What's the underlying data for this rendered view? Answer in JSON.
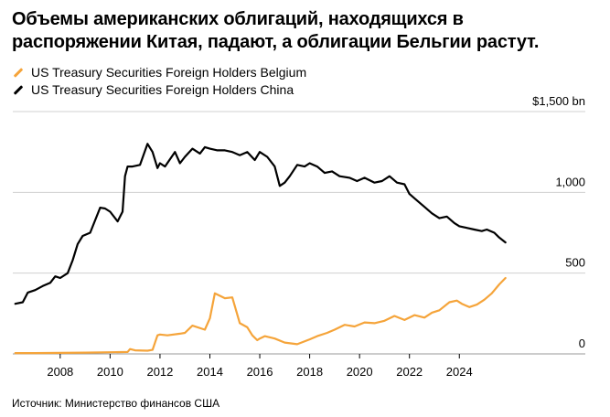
{
  "title": "Объемы американских облигаций, находящихся в распоряжении Китая, падают, а облигации Бельгии растут.",
  "source": "Источник: Министерство финансов США",
  "colors": {
    "belgium": "#f5a43a",
    "china": "#000000",
    "grid": "#d0d0d0"
  },
  "chart_data": {
    "type": "line",
    "title": "Объемы американских облигаций, находящихся в распоряжении Китая, падают, а облигации Бельгии растут.",
    "xlabel": "",
    "ylabel": "",
    "xlim": [
      2006.1,
      2026.3
    ],
    "ylim": [
      0,
      1500
    ],
    "x_ticks": [
      2008,
      2010,
      2012,
      2014,
      2016,
      2018,
      2020,
      2022,
      2024
    ],
    "x_tick_labels": [
      "2008",
      "2010",
      "2012",
      "2014",
      "2016",
      "2018",
      "2020",
      "2022",
      "2024"
    ],
    "y_ticks": [
      0,
      500,
      1000,
      1500
    ],
    "y_tick_labels": [
      "0",
      "500",
      "1,000",
      "$1,500 bn"
    ],
    "grid": true,
    "legend": "top-left",
    "series": [
      {
        "name": "US Treasury Securities Foreign Holders Belgium",
        "color": "#f5a43a",
        "x": [
          2006.2,
          2007.0,
          2008.0,
          2009.0,
          2010.0,
          2010.7,
          2010.8,
          2011.0,
          2011.5,
          2011.7,
          2011.9,
          2012.0,
          2012.3,
          2012.8,
          2013.0,
          2013.3,
          2013.8,
          2014.0,
          2014.2,
          2014.6,
          2014.9,
          2015.2,
          2015.5,
          2015.7,
          2015.9,
          2016.0,
          2016.2,
          2016.6,
          2017.0,
          2017.5,
          2018.0,
          2018.3,
          2018.7,
          2019.0,
          2019.4,
          2019.8,
          2020.2,
          2020.6,
          2021.0,
          2021.4,
          2021.8,
          2022.2,
          2022.6,
          2022.9,
          2023.2,
          2023.6,
          2023.9,
          2024.1,
          2024.4,
          2024.7,
          2025.0,
          2025.3,
          2025.6,
          2025.85
        ],
        "values": [
          5,
          5,
          6,
          8,
          10,
          12,
          30,
          22,
          20,
          25,
          115,
          120,
          115,
          125,
          130,
          175,
          150,
          220,
          375,
          345,
          350,
          190,
          165,
          115,
          85,
          95,
          110,
          95,
          70,
          60,
          90,
          110,
          130,
          150,
          180,
          170,
          195,
          190,
          205,
          235,
          210,
          240,
          225,
          255,
          270,
          320,
          330,
          310,
          290,
          305,
          335,
          375,
          430,
          470
        ]
      },
      {
        "name": "US Treasury Securities Foreign Holders China",
        "color": "#000000",
        "x": [
          2006.2,
          2006.5,
          2006.7,
          2007.0,
          2007.3,
          2007.6,
          2007.8,
          2008.0,
          2008.3,
          2008.5,
          2008.7,
          2008.9,
          2009.2,
          2009.6,
          2009.8,
          2010.0,
          2010.3,
          2010.5,
          2010.6,
          2010.7,
          2010.9,
          2011.2,
          2011.5,
          2011.7,
          2011.9,
          2012.0,
          2012.2,
          2012.6,
          2012.8,
          2013.0,
          2013.3,
          2013.6,
          2013.8,
          2014.0,
          2014.3,
          2014.6,
          2014.9,
          2015.2,
          2015.5,
          2015.8,
          2016.0,
          2016.3,
          2016.6,
          2016.8,
          2017.0,
          2017.2,
          2017.5,
          2017.8,
          2018.0,
          2018.3,
          2018.6,
          2018.9,
          2019.2,
          2019.6,
          2019.9,
          2020.2,
          2020.6,
          2020.9,
          2021.2,
          2021.5,
          2021.8,
          2022.0,
          2022.3,
          2022.6,
          2022.9,
          2023.2,
          2023.5,
          2023.8,
          2024.0,
          2024.3,
          2024.6,
          2024.9,
          2025.1,
          2025.4,
          2025.6,
          2025.85
        ],
        "values": [
          310,
          320,
          380,
          395,
          420,
          440,
          480,
          470,
          500,
          580,
          680,
          730,
          750,
          905,
          900,
          880,
          820,
          880,
          1100,
          1160,
          1160,
          1170,
          1300,
          1250,
          1150,
          1180,
          1160,
          1250,
          1180,
          1220,
          1270,
          1240,
          1280,
          1270,
          1260,
          1260,
          1250,
          1230,
          1250,
          1200,
          1250,
          1220,
          1160,
          1040,
          1060,
          1100,
          1170,
          1160,
          1180,
          1160,
          1120,
          1130,
          1100,
          1090,
          1070,
          1090,
          1060,
          1070,
          1100,
          1060,
          1050,
          990,
          950,
          910,
          870,
          840,
          850,
          810,
          790,
          780,
          770,
          760,
          770,
          750,
          720,
          690
        ]
      }
    ]
  }
}
